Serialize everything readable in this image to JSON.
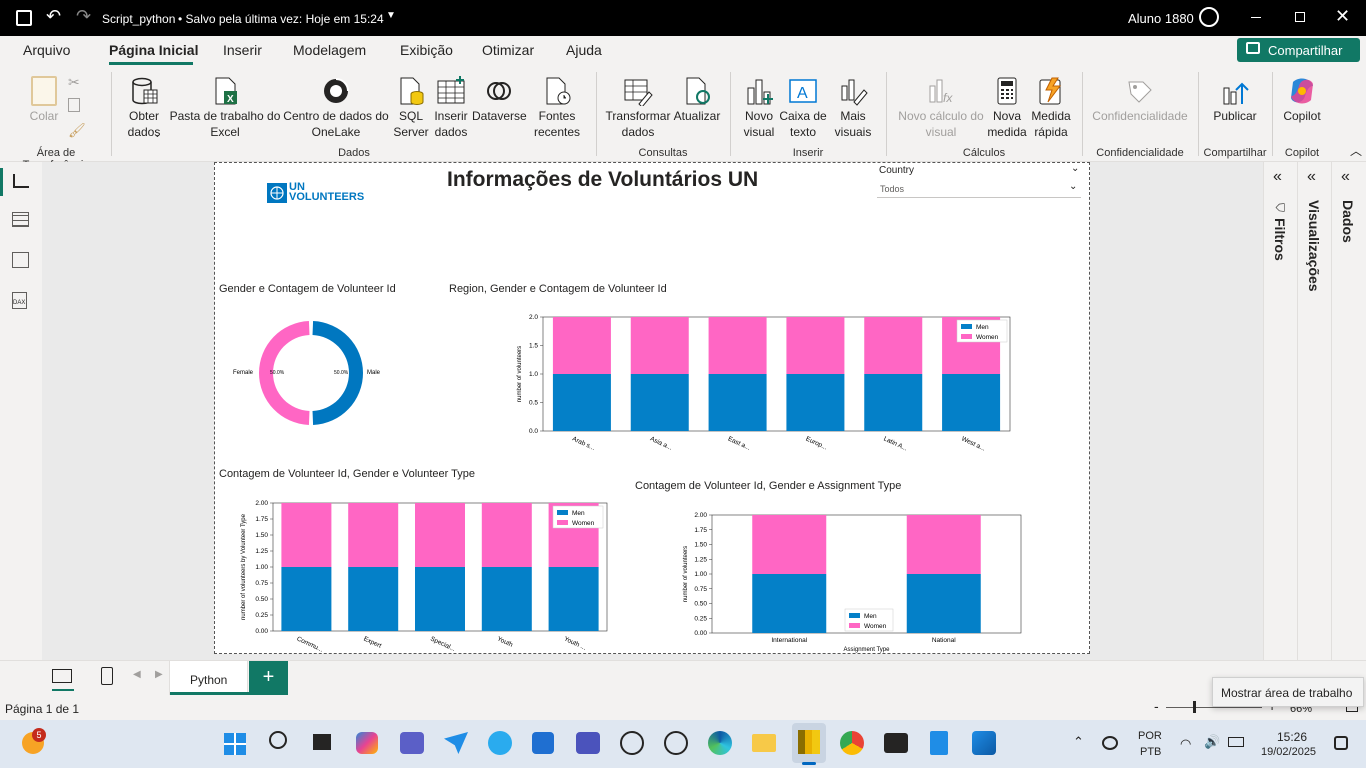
{
  "titlebar": {
    "doc_name": "Script_python",
    "saved": "• Salvo pela última vez: Hoje em 15:24",
    "user": "Aluno 1880"
  },
  "menu": {
    "items": [
      "Arquivo",
      "Página Inicial",
      "Inserir",
      "Modelagem",
      "Exibição",
      "Otimizar",
      "Ajuda"
    ],
    "share": "Compartilhar"
  },
  "ribbon": {
    "paste": "Colar",
    "get_data": "Obter dados",
    "excel": "Pasta de trabalho do Excel",
    "onelake": "Centro de dados do OneLake",
    "sql": "SQL Server",
    "enter_data": "Inserir dados",
    "dataverse": "Dataverse",
    "recent": "Fontes recentes",
    "transform": "Transformar dados",
    "refresh": "Atualizar",
    "new_visual": "Novo visual",
    "text_box": "Caixa de texto",
    "more_visuals": "Mais visuais",
    "new_calc": "Novo cálculo do visual",
    "new_measure": "Nova medida",
    "quick_measure": "Medida rápida",
    "sensitivity": "Confidencialidade",
    "publish": "Publicar",
    "copilot": "Copilot",
    "groups": {
      "clipboard": "Área de Transferência",
      "data": "Dados",
      "queries": "Consultas",
      "insert": "Inserir",
      "calcs": "Cálculos",
      "sensitivity": "Confidencialidade",
      "share": "Compartilhar",
      "copilot": "Copilot"
    }
  },
  "report": {
    "logo_line1": "UN",
    "logo_line2": "VOLUNTEERS",
    "title": "Informações de Voluntários UN",
    "slicer_label": "Country",
    "slicer_value": "Todos",
    "v1_title": "Gender e Contagem de Volunteer Id",
    "v2_title": "Region, Gender e Contagem de Volunteer Id",
    "v3_title": "Contagem de Volunteer Id, Gender e Volunteer Type",
    "v4_title": "Contagem de Volunteer Id, Gender e Assignment Type"
  },
  "chart_data": [
    {
      "type": "pie",
      "slices": [
        {
          "label": "Female",
          "pct": "50.0%",
          "value": 50
        },
        {
          "label": "Male",
          "pct": "50.0%",
          "value": 50
        }
      ],
      "colors": [
        "#ff66c4",
        "#0077c0"
      ]
    },
    {
      "type": "bar",
      "categories": [
        "Arab s...",
        "Asia a...",
        "East a...",
        "Europ...",
        "Latin A...",
        "West a..."
      ],
      "series": [
        {
          "name": "Men",
          "values": [
            1,
            1,
            1,
            1,
            1,
            1
          ]
        },
        {
          "name": "Women",
          "values": [
            1,
            1,
            1,
            1,
            1,
            1
          ]
        }
      ],
      "ylabel": "number of volunteers",
      "yticks": [
        "0.0",
        "0.5",
        "1.0",
        "1.5",
        "2.0"
      ],
      "ylim": [
        0,
        2
      ]
    },
    {
      "type": "bar",
      "categories": [
        "Commu...",
        "Expert",
        "Special...",
        "Youth",
        "Youth ..."
      ],
      "series": [
        {
          "name": "Men",
          "values": [
            1,
            1,
            1,
            1,
            1
          ]
        },
        {
          "name": "Women",
          "values": [
            1,
            1,
            1,
            1,
            1
          ]
        }
      ],
      "ylabel": "number of volunteers by Volunteer Type",
      "yticks": [
        "0.00",
        "0.25",
        "0.50",
        "0.75",
        "1.00",
        "1.25",
        "1.50",
        "1.75",
        "2.00"
      ],
      "ylim": [
        0,
        2
      ]
    },
    {
      "type": "bar",
      "categories": [
        "International",
        "National"
      ],
      "series": [
        {
          "name": "Men",
          "values": [
            1,
            1
          ]
        },
        {
          "name": "Women",
          "values": [
            1,
            1
          ]
        }
      ],
      "ylabel": "number of volunteers",
      "xlabel": "Assignment Type",
      "yticks": [
        "0.00",
        "0.25",
        "0.50",
        "0.75",
        "1.00",
        "1.25",
        "1.50",
        "1.75",
        "2.00"
      ],
      "ylim": [
        0,
        2
      ]
    }
  ],
  "panes": {
    "filters": "Filtros",
    "visuals": "Visualizações",
    "data": "Dados"
  },
  "tabs": {
    "page": "Python"
  },
  "status": {
    "page": "Página 1 de 1",
    "tooltip": "Mostrar área de trabalho",
    "zoom": "66%"
  },
  "taskbar": {
    "badge": "5",
    "lang1": "POR",
    "lang2": "PTB",
    "time": "15:26",
    "date": "19/02/2025"
  }
}
